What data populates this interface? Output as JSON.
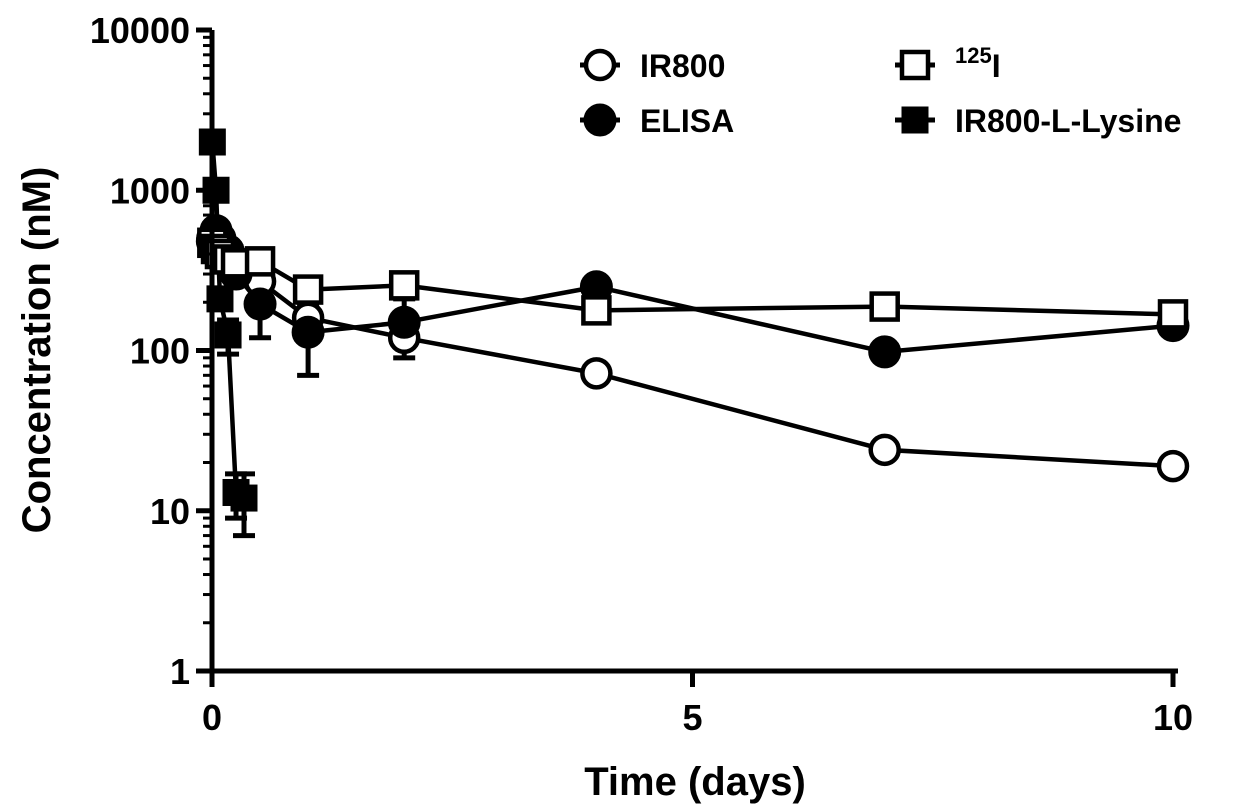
{
  "chart_data": {
    "type": "scatter",
    "title": "",
    "xlabel": "Time (days)",
    "ylabel": "Concentration (nM)",
    "xlim": [
      0,
      10
    ],
    "ylim": [
      1,
      10000
    ],
    "yscale": "log",
    "grid": false,
    "legend_position": "top-right",
    "x_ticks": [
      "0",
      "5",
      "10"
    ],
    "y_ticks": [
      "1",
      "10",
      "100",
      "1000",
      "10000"
    ],
    "series": [
      {
        "name": "IR800",
        "marker": "open-circle",
        "x": [
          0.0035,
          0.042,
          0.083,
          0.167,
          0.25,
          0.5,
          1,
          2,
          4,
          7,
          10
        ],
        "y": [
          500,
          470,
          420,
          380,
          330,
          270,
          160,
          120,
          72,
          24,
          19
        ],
        "error": [
          0,
          0,
          0,
          0,
          0,
          0,
          0,
          0,
          0,
          0,
          0
        ]
      },
      {
        "name": "ELISA",
        "marker": "filled-circle",
        "x": [
          0.0035,
          0.042,
          0.083,
          0.167,
          0.25,
          0.5,
          1,
          2,
          4,
          7,
          10
        ],
        "y": [
          480,
          560,
          500,
          420,
          300,
          195,
          130,
          150,
          250,
          98,
          143
        ],
        "error": [
          0,
          0,
          0,
          0,
          40,
          75,
          60,
          60,
          0,
          0,
          0
        ]
      },
      {
        "name_prefix": "125",
        "name_suffix": "I",
        "marker": "open-square",
        "x": [
          0.0035,
          0.042,
          0.083,
          0.167,
          0.25,
          0.5,
          1,
          2,
          4,
          7,
          10
        ],
        "y": [
          470,
          430,
          400,
          370,
          350,
          360,
          240,
          255,
          178,
          188,
          168
        ],
        "error": [
          0,
          0,
          0,
          0,
          0,
          0,
          0,
          0,
          0,
          0,
          0
        ]
      },
      {
        "name": "IR800-L-Lysine",
        "marker": "filled-square",
        "x": [
          0.0035,
          0.042,
          0.083,
          0.167,
          0.25,
          0.333
        ],
        "y": [
          2000,
          1000,
          210,
          125,
          13,
          12
        ],
        "error": [
          0,
          0,
          0,
          30,
          4,
          5
        ]
      }
    ]
  }
}
